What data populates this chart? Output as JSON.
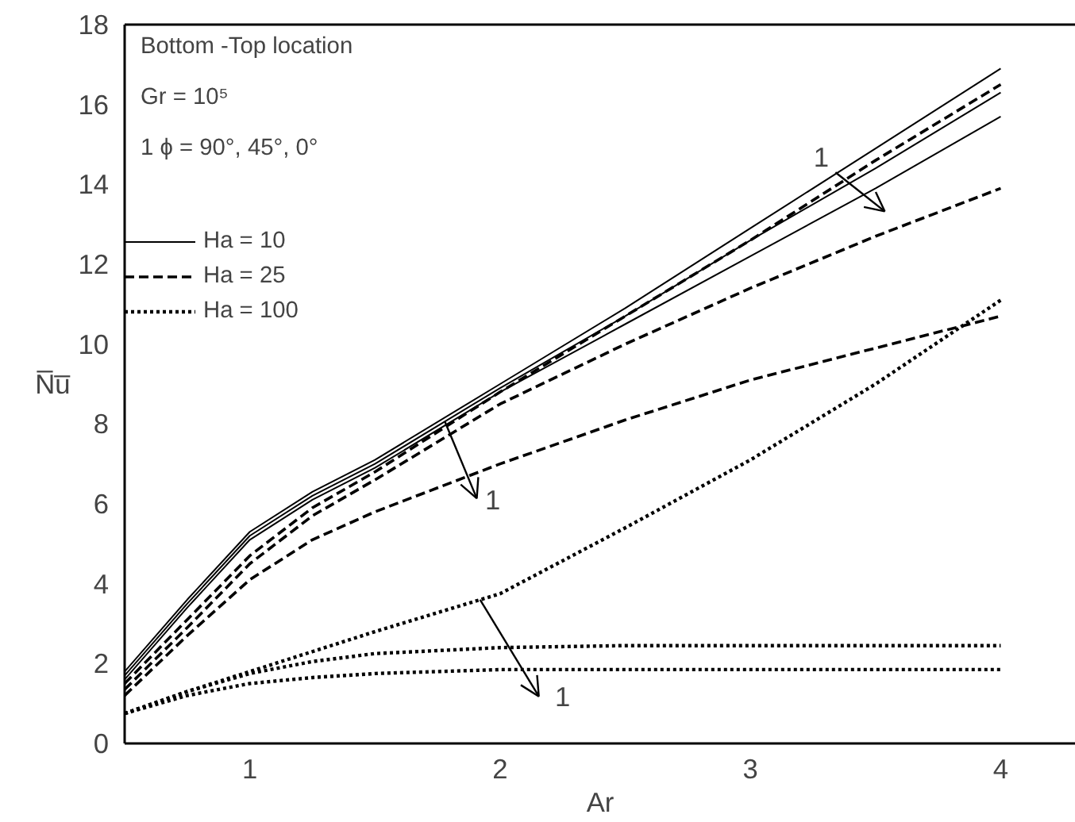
{
  "chart_data": {
    "type": "line",
    "xlabel": "Ar",
    "ylabel": "N̅u̅",
    "x": [
      0.5,
      0.75,
      1,
      1.25,
      1.5,
      2,
      2.5,
      3,
      3.5,
      4
    ],
    "xlim": [
      0.5,
      4.3
    ],
    "ylim": [
      0,
      18
    ],
    "xticks": [
      1,
      2,
      3,
      4
    ],
    "yticks": [
      0,
      2,
      4,
      6,
      8,
      10,
      12,
      14,
      16,
      18
    ],
    "grid": false,
    "legend": "top left",
    "series": [
      {
        "name": "Ha = 10",
        "color": "#000000",
        "line_style": "solid",
        "values": [
          1.8,
          3.6,
          5.3,
          6.3,
          7.1,
          9.0,
          10.9,
          12.9,
          14.9,
          16.9
        ]
      },
      {
        "color": "#000000",
        "line_style": "solid",
        "values": [
          1.7,
          3.5,
          5.2,
          6.2,
          7.0,
          8.9,
          10.7,
          12.6,
          14.4,
          16.3
        ]
      },
      {
        "color": "#000000",
        "line_style": "solid",
        "values": [
          1.6,
          3.4,
          5.1,
          6.1,
          6.9,
          8.8,
          10.5,
          12.2,
          13.9,
          15.7
        ]
      },
      {
        "name": "Ha = 25",
        "color": "#000000",
        "line_style": "dashed",
        "values": [
          1.5,
          3.1,
          4.7,
          5.9,
          6.8,
          8.8,
          10.7,
          12.6,
          14.6,
          16.5
        ]
      },
      {
        "color": "#000000",
        "line_style": "dashed",
        "values": [
          1.35,
          2.9,
          4.5,
          5.7,
          6.6,
          8.5,
          10.0,
          11.4,
          12.7,
          13.9
        ]
      },
      {
        "color": "#000000",
        "line_style": "dashed",
        "values": [
          1.2,
          2.7,
          4.1,
          5.1,
          5.8,
          7.0,
          8.1,
          9.1,
          9.9,
          10.7
        ]
      },
      {
        "name": "Ha = 100",
        "color": "#000000",
        "line_style": "dotted",
        "values": [
          0.75,
          1.3,
          1.8,
          2.3,
          2.8,
          3.75,
          5.4,
          7.1,
          9.0,
          11.1
        ]
      },
      {
        "color": "#000000",
        "line_style": "dotted",
        "values": [
          0.75,
          1.3,
          1.75,
          2.05,
          2.25,
          2.4,
          2.45,
          2.45,
          2.45,
          2.45
        ]
      },
      {
        "color": "#000000",
        "line_style": "dotted",
        "values": [
          0.75,
          1.2,
          1.5,
          1.65,
          1.75,
          1.85,
          1.85,
          1.85,
          1.85,
          1.85
        ]
      }
    ],
    "annotations": [
      "Bottom -Top location",
      "Gr = 10⁵",
      "1    ϕ = 90°, 45°, 0°",
      {
        "text": "1",
        "x": 3.34,
        "y": 14.3
      },
      {
        "text": "1",
        "x": 1.78,
        "y": 8.05
      },
      {
        "text": "1",
        "x": 1.92,
        "y": 3.6
      }
    ]
  }
}
